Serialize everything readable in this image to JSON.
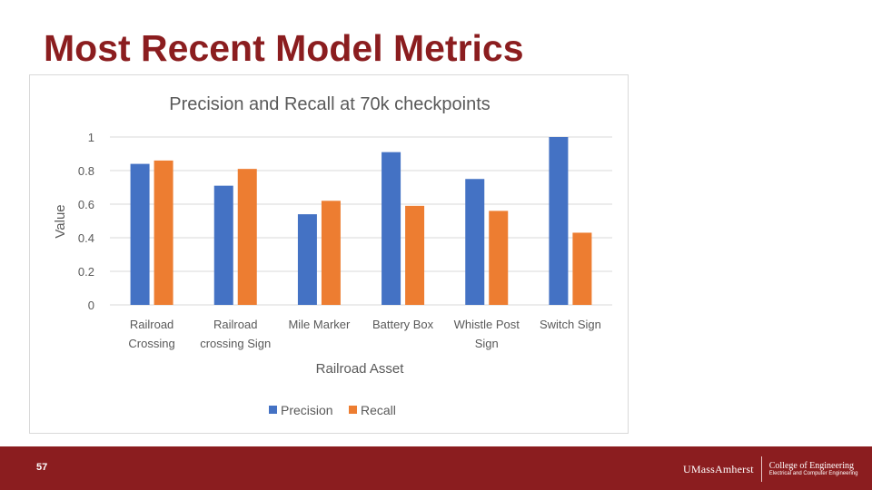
{
  "slide": {
    "title": "Most Recent Model Metrics",
    "page_number": "57"
  },
  "footer": {
    "university": "UMassAmherst",
    "college": "College of Engineering",
    "department": "Electrical and Computer Engineering"
  },
  "colors": {
    "brand": "#8b1d1f",
    "precision": "#4472c4",
    "recall": "#ed7d31"
  },
  "chart_data": {
    "type": "bar",
    "title": "Precision and Recall at 70k checkpoints",
    "xlabel": "Railroad Asset",
    "ylabel": "Value",
    "categories": [
      [
        "Railroad",
        "Crossing"
      ],
      [
        "Railroad",
        "crossing Sign"
      ],
      [
        "Mile Marker"
      ],
      [
        "Battery Box"
      ],
      [
        "Whistle Post",
        "Sign"
      ],
      [
        "Switch Sign"
      ]
    ],
    "series": [
      {
        "name": "Precision",
        "color": "#4472c4",
        "values": [
          0.84,
          0.71,
          0.54,
          0.91,
          0.75,
          1.0
        ]
      },
      {
        "name": "Recall",
        "color": "#ed7d31",
        "values": [
          0.86,
          0.81,
          0.62,
          0.59,
          0.56,
          0.43
        ]
      }
    ],
    "ylim": [
      0,
      1
    ],
    "yticks": [
      "0",
      "0.2",
      "0.4",
      "0.6",
      "0.8",
      "1"
    ],
    "ytick_values": [
      0,
      0.2,
      0.4,
      0.6,
      0.8,
      1
    ],
    "grid": true,
    "legend": "bottom"
  }
}
